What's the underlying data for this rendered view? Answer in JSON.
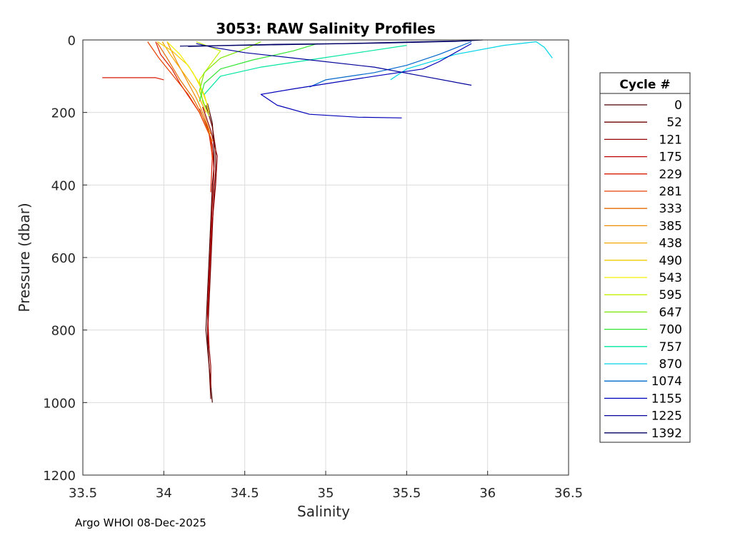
{
  "chart_data": {
    "type": "line",
    "title": "3053: RAW Salinity Profiles",
    "xlabel": "Salinity",
    "ylabel": "Pressure (dbar)",
    "xlim": [
      33.5,
      36.5
    ],
    "ylim": [
      0,
      1200
    ],
    "y_reversed": true,
    "grid": true,
    "x_ticks": [
      33.5,
      34,
      34.5,
      35,
      35.5,
      36,
      36.5
    ],
    "x_tick_labels": [
      "33.5",
      "34",
      "34.5",
      "35",
      "35.5",
      "36",
      "36.5"
    ],
    "y_ticks": [
      0,
      200,
      400,
      600,
      800,
      1000,
      1200
    ],
    "y_tick_labels": [
      "0",
      "200",
      "400",
      "600",
      "800",
      "1000",
      "1200"
    ],
    "legend": {
      "title": "Cycle #",
      "placement": "right",
      "entries": [
        {
          "label": "0",
          "color": "#4d0000"
        },
        {
          "label": "52",
          "color": "#6b0000"
        },
        {
          "label": "121",
          "color": "#940000"
        },
        {
          "label": "175",
          "color": "#b80000"
        },
        {
          "label": "229",
          "color": "#d91a00"
        },
        {
          "label": "281",
          "color": "#e64000"
        },
        {
          "label": "333",
          "color": "#e66b00"
        },
        {
          "label": "385",
          "color": "#f08a00"
        },
        {
          "label": "438",
          "color": "#f5a800"
        },
        {
          "label": "490",
          "color": "#f5cc00"
        },
        {
          "label": "543",
          "color": "#f0f000"
        },
        {
          "label": "595",
          "color": "#c2f000"
        },
        {
          "label": "647",
          "color": "#7de600"
        },
        {
          "label": "700",
          "color": "#33e633"
        },
        {
          "label": "757",
          "color": "#00e6a0"
        },
        {
          "label": "870",
          "color": "#00d4e6"
        },
        {
          "label": "1074",
          "color": "#0066cc"
        },
        {
          "label": "1155",
          "color": "#0000b8"
        },
        {
          "label": "1225",
          "color": "#00009a"
        },
        {
          "label": "1392",
          "color": "#000066"
        }
      ]
    },
    "series": [
      {
        "color": "#4d0000",
        "points": [
          [
            34.27,
            175
          ],
          [
            34.3,
            230
          ],
          [
            34.31,
            300
          ],
          [
            34.31,
            350
          ],
          [
            34.3,
            400
          ],
          [
            34.29,
            500
          ],
          [
            34.28,
            600
          ],
          [
            34.27,
            700
          ],
          [
            34.26,
            800
          ],
          [
            34.28,
            900
          ],
          [
            34.3,
            1000
          ]
        ]
      },
      {
        "color": "#6b0000",
        "points": [
          [
            34.26,
            180
          ],
          [
            34.3,
            240
          ],
          [
            34.32,
            300
          ],
          [
            34.32,
            360
          ],
          [
            34.31,
            420
          ],
          [
            34.3,
            520
          ],
          [
            34.29,
            620
          ],
          [
            34.28,
            720
          ],
          [
            34.27,
            820
          ],
          [
            34.28,
            900
          ],
          [
            34.29,
            990
          ]
        ]
      },
      {
        "color": "#940000",
        "points": [
          [
            34.24,
            185
          ],
          [
            34.29,
            250
          ],
          [
            34.33,
            320
          ],
          [
            34.32,
            400
          ],
          [
            34.3,
            500
          ],
          [
            34.29,
            600
          ],
          [
            34.28,
            700
          ],
          [
            34.27,
            800
          ],
          [
            34.29,
            900
          ],
          [
            34.29,
            960
          ]
        ]
      },
      {
        "color": "#b80000",
        "points": [
          [
            34.22,
            190
          ],
          [
            34.27,
            240
          ],
          [
            34.3,
            290
          ],
          [
            34.31,
            360
          ],
          [
            34.3,
            450
          ],
          [
            34.29,
            550
          ],
          [
            34.28,
            650
          ],
          [
            34.27,
            750
          ],
          [
            34.28,
            850
          ]
        ]
      },
      {
        "color": "#d91a00",
        "points": [
          [
            33.95,
            5
          ],
          [
            33.98,
            40
          ],
          [
            34.05,
            80
          ],
          [
            34.1,
            120
          ],
          [
            34.16,
            160
          ],
          [
            34.22,
            200
          ],
          [
            34.28,
            260
          ],
          [
            34.3,
            320
          ],
          [
            34.29,
            420
          ]
        ]
      },
      {
        "color": "#d91a00",
        "points": [
          [
            33.62,
            104
          ],
          [
            33.95,
            104
          ],
          [
            34.0,
            110
          ]
        ]
      },
      {
        "color": "#e64000",
        "points": [
          [
            33.9,
            5
          ],
          [
            33.97,
            50
          ],
          [
            34.06,
            100
          ],
          [
            34.15,
            150
          ],
          [
            34.22,
            200
          ],
          [
            34.29,
            270
          ],
          [
            34.3,
            330
          ]
        ]
      },
      {
        "color": "#e66b00",
        "points": [
          [
            33.96,
            8
          ],
          [
            34.02,
            50
          ],
          [
            34.1,
            110
          ],
          [
            34.18,
            160
          ],
          [
            34.24,
            210
          ],
          [
            34.3,
            280
          ]
        ]
      },
      {
        "color": "#f08a00",
        "points": [
          [
            34.02,
            5
          ],
          [
            34.08,
            60
          ],
          [
            34.14,
            110
          ],
          [
            34.2,
            160
          ],
          [
            34.25,
            210
          ],
          [
            34.29,
            260
          ]
        ]
      },
      {
        "color": "#f5a800",
        "points": [
          [
            33.99,
            5
          ],
          [
            34.04,
            40
          ],
          [
            34.12,
            90
          ],
          [
            34.2,
            140
          ],
          [
            34.26,
            200
          ]
        ]
      },
      {
        "color": "#f5cc00",
        "points": [
          [
            33.96,
            5
          ],
          [
            34.05,
            30
          ],
          [
            34.15,
            70
          ],
          [
            34.22,
            120
          ],
          [
            34.27,
            180
          ]
        ]
      },
      {
        "color": "#f0f000",
        "points": [
          [
            34.02,
            5
          ],
          [
            34.1,
            40
          ],
          [
            34.18,
            90
          ],
          [
            34.25,
            150
          ],
          [
            34.28,
            200
          ]
        ]
      },
      {
        "color": "#c2f000",
        "points": [
          [
            34.2,
            5
          ],
          [
            34.35,
            30
          ],
          [
            34.3,
            60
          ],
          [
            34.22,
            110
          ],
          [
            34.24,
            170
          ],
          [
            34.28,
            210
          ]
        ]
      },
      {
        "color": "#7de600",
        "points": [
          [
            34.6,
            5
          ],
          [
            34.5,
            25
          ],
          [
            34.35,
            50
          ],
          [
            34.25,
            90
          ],
          [
            34.22,
            140
          ],
          [
            34.26,
            190
          ]
        ]
      },
      {
        "color": "#33e633",
        "points": [
          [
            34.95,
            10
          ],
          [
            34.8,
            30
          ],
          [
            34.55,
            55
          ],
          [
            34.35,
            80
          ],
          [
            34.25,
            120
          ],
          [
            34.22,
            170
          ]
        ]
      },
      {
        "color": "#00e6a0",
        "points": [
          [
            35.5,
            15
          ],
          [
            35.2,
            35
          ],
          [
            34.9,
            55
          ],
          [
            34.6,
            75
          ],
          [
            34.35,
            100
          ],
          [
            34.25,
            150
          ]
        ]
      },
      {
        "color": "#00d4e6",
        "points": [
          [
            36.4,
            50
          ],
          [
            36.35,
            20
          ],
          [
            36.3,
            5
          ],
          [
            36.1,
            15
          ],
          [
            35.8,
            40
          ],
          [
            35.5,
            80
          ],
          [
            35.4,
            110
          ]
        ]
      },
      {
        "color": "#0066cc",
        "points": [
          [
            35.9,
            5
          ],
          [
            35.7,
            40
          ],
          [
            35.5,
            70
          ],
          [
            35.3,
            90
          ],
          [
            35.0,
            110
          ],
          [
            34.9,
            130
          ]
        ]
      },
      {
        "color": "#0000b8",
        "points": [
          [
            35.9,
            10
          ],
          [
            35.7,
            60
          ],
          [
            35.6,
            80
          ],
          [
            35.3,
            100
          ],
          [
            34.8,
            135
          ],
          [
            34.6,
            150
          ],
          [
            34.7,
            180
          ],
          [
            34.9,
            205
          ],
          [
            35.2,
            213
          ],
          [
            35.47,
            215
          ]
        ]
      },
      {
        "color": "#00009a",
        "points": [
          [
            35.9,
            125
          ],
          [
            35.6,
            100
          ],
          [
            35.3,
            75
          ],
          [
            34.8,
            50
          ],
          [
            34.5,
            35
          ],
          [
            34.3,
            20
          ],
          [
            34.2,
            10
          ]
        ]
      },
      {
        "color": "#000066",
        "points": [
          [
            35.97,
            0
          ],
          [
            35.8,
            4
          ],
          [
            35.4,
            8
          ],
          [
            35.0,
            11
          ],
          [
            34.6,
            14
          ],
          [
            34.3,
            16
          ],
          [
            34.1,
            17
          ]
        ]
      },
      {
        "color": "#000066",
        "points": [
          [
            35.9,
            2
          ],
          [
            35.5,
            6
          ],
          [
            35.1,
            10
          ],
          [
            34.7,
            12
          ],
          [
            34.4,
            15
          ],
          [
            34.15,
            18
          ]
        ]
      }
    ]
  },
  "footer": "Argo WHOI 08-Dec-2025"
}
